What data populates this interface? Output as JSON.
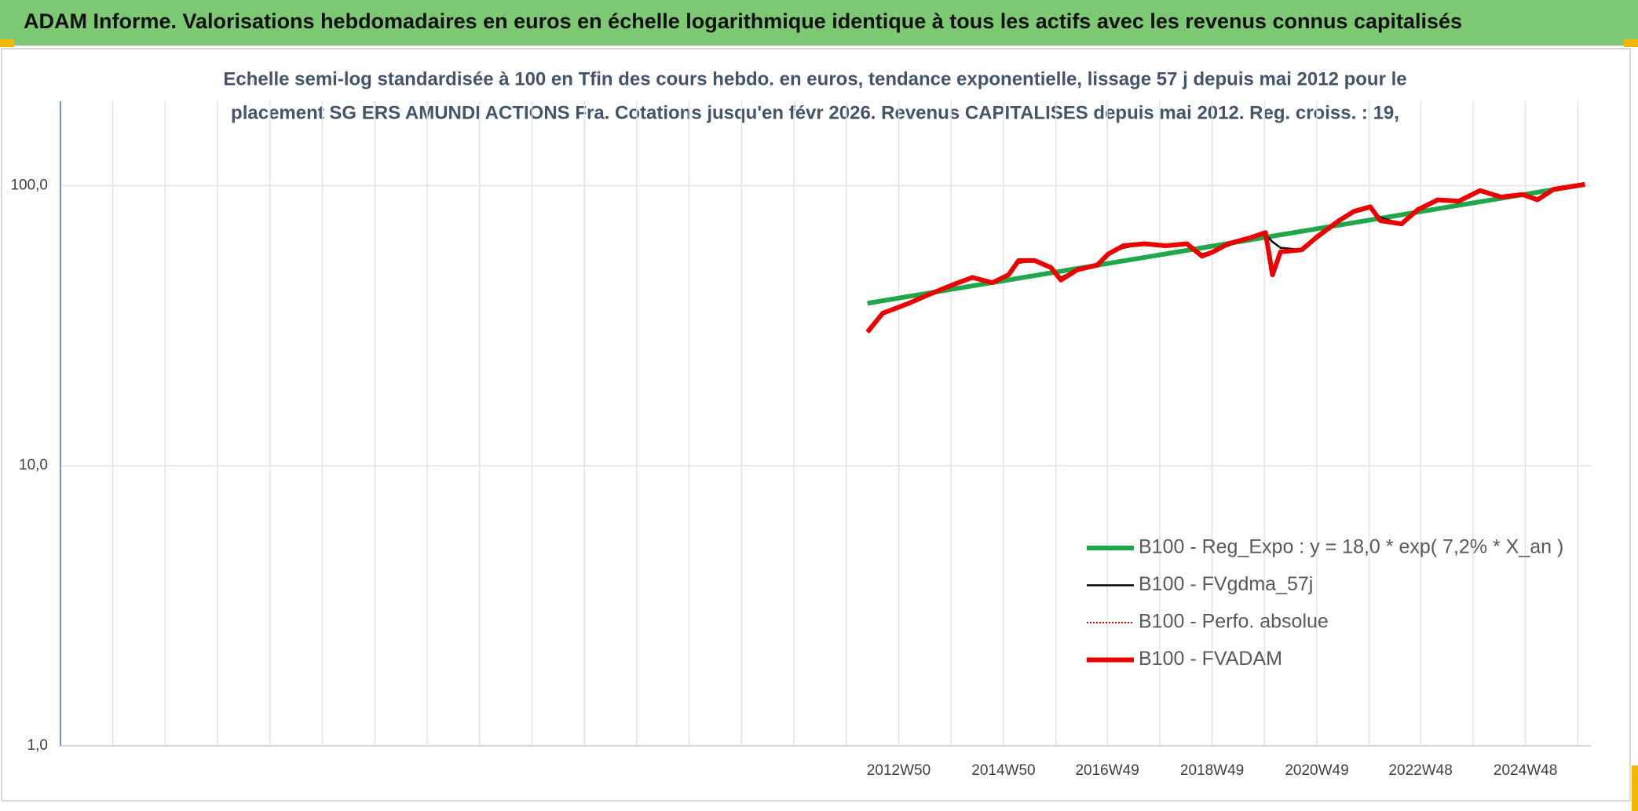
{
  "header": {
    "title": "ADAM Informe. Valorisations hebdomadaires en euros en échelle logarithmique identique à tous les actifs avec les revenus connus capitalisés"
  },
  "chart_data": {
    "type": "line",
    "subtitle": [
      "Echelle semi-log standardisée à 100 en Tfin des cours hebdo. en euros, tendance exponentielle, lissage 57 j depuis mai 2012 pour le",
      "placement SG ERS AMUNDI ACTIONS Fra. Cotations jusqu'en févr 2026. Revenus CAPITALISES depuis mai 2012. Reg. croiss. : 19,"
    ],
    "log_scale": true,
    "grid": true,
    "ylim": [
      1,
      200
    ],
    "yticks": [
      {
        "value": 1,
        "label": "1,0"
      },
      {
        "value": 10,
        "label": "10,0"
      },
      {
        "value": 100,
        "label": "100,0"
      }
    ],
    "xlim": [
      "1996W50",
      "2026W09"
    ],
    "xticks": [
      "2012W50",
      "2014W50",
      "2016W49",
      "2018W49",
      "2020W49",
      "2022W48",
      "2024W48"
    ],
    "x": [
      "2012W19",
      "2012W34",
      "2013W08",
      "2013W29",
      "2013W50",
      "2014W19",
      "2014W39",
      "2015W03",
      "2015W13",
      "2015W29",
      "2015W45",
      "2016W03",
      "2016W19",
      "2016W39",
      "2016W50",
      "2017W13",
      "2017W34",
      "2018W03",
      "2018W24",
      "2018W39",
      "2018W50",
      "2019W13",
      "2019W34",
      "2019W50",
      "2020W05",
      "2020W13",
      "2020W34",
      "2020W50",
      "2021W19",
      "2021W34",
      "2021W50",
      "2022W08",
      "2022W29",
      "2022W45",
      "2023W13",
      "2023W34",
      "2024W03",
      "2024W24",
      "2024W45",
      "2025W08",
      "2025W24",
      "2026W03"
    ],
    "series": [
      {
        "name": "B100 - Reg_Expo : y = 18,0 * exp( 7,2% *  X_an )",
        "color": "#1fa84a",
        "style": "thick",
        "x": [
          "2012W19",
          "2026W03"
        ],
        "values": [
          38,
          101
        ]
      },
      {
        "name": "B100 - FVgdma_57j",
        "color": "#000000",
        "style": "thin",
        "values": [
          30,
          35,
          38,
          41,
          44,
          47,
          45,
          48,
          53,
          54,
          51,
          47,
          50,
          52,
          57,
          60,
          62,
          61,
          62,
          57,
          58,
          61,
          65,
          67,
          63,
          60,
          59,
          65,
          74,
          80,
          83,
          77,
          73,
          81,
          88,
          88,
          95,
          91,
          93,
          90,
          96,
          100
        ]
      },
      {
        "name": "B100 - Perfo. absolue",
        "color": "#e00000",
        "style": "dotted",
        "values": [
          30,
          35,
          38,
          41,
          44,
          47,
          45,
          48,
          54,
          54,
          51,
          46,
          50,
          52,
          57,
          61,
          62,
          61,
          62,
          56,
          58,
          62,
          65,
          68,
          48,
          58,
          59,
          66,
          75,
          81,
          84,
          75,
          73,
          82,
          89,
          88,
          96,
          91,
          93,
          89,
          97,
          101
        ]
      },
      {
        "name": "B100 - FVADAM",
        "color": "#ee0000",
        "style": "thick",
        "values": [
          30,
          35,
          38,
          41,
          44,
          47,
          45,
          48,
          54,
          54,
          51,
          46,
          50,
          52,
          57,
          61,
          62,
          61,
          62,
          56,
          58,
          62,
          65,
          68,
          48,
          58,
          59,
          66,
          75,
          81,
          84,
          75,
          73,
          82,
          89,
          88,
          96,
          91,
          93,
          89,
          97,
          101
        ]
      }
    ]
  }
}
